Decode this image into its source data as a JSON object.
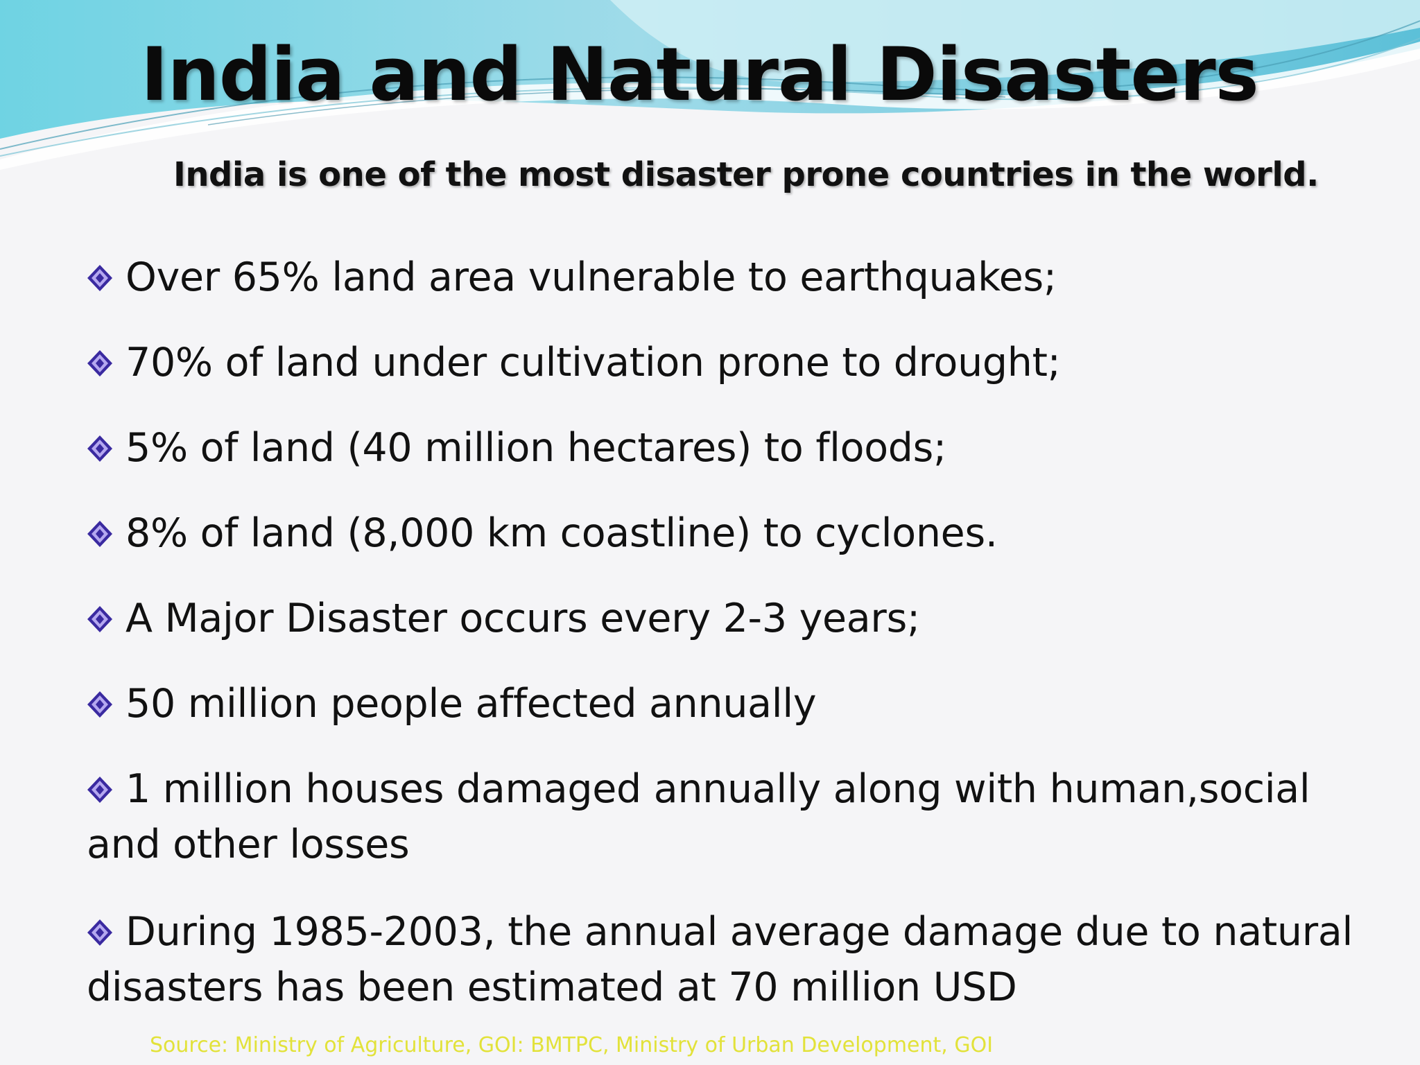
{
  "slide": {
    "title": "India and Natural Disasters",
    "subtitle": "India is one of the most disaster prone countries in the world.",
    "bullets": [
      "Over 65% land area vulnerable to earthquakes;",
      "70% of land under cultivation prone to drought;",
      "5% of land (40 million hectares) to floods;",
      "8% of land (8,000 km coastline) to cyclones.",
      "A Major Disaster occurs every 2-3 years;",
      "50 million people affected annually",
      "1 million houses damaged annually along with human,social and other losses",
      "During 1985-2003, the annual average damage due to natural disasters has been estimated at 70 million USD"
    ],
    "source": "Source: Ministry of Agriculture, GOI:  BMTPC, Ministry of Urban Development, GOI"
  },
  "colors": {
    "background": "#f5f5f7",
    "wave_teal": "#5fc8dc",
    "wave_light": "#a8e2ee",
    "bullet_diamond": "#3a2aa0",
    "source_text": "#e2e23a"
  },
  "icons": {
    "bullet": "diamond-bullet-icon"
  }
}
